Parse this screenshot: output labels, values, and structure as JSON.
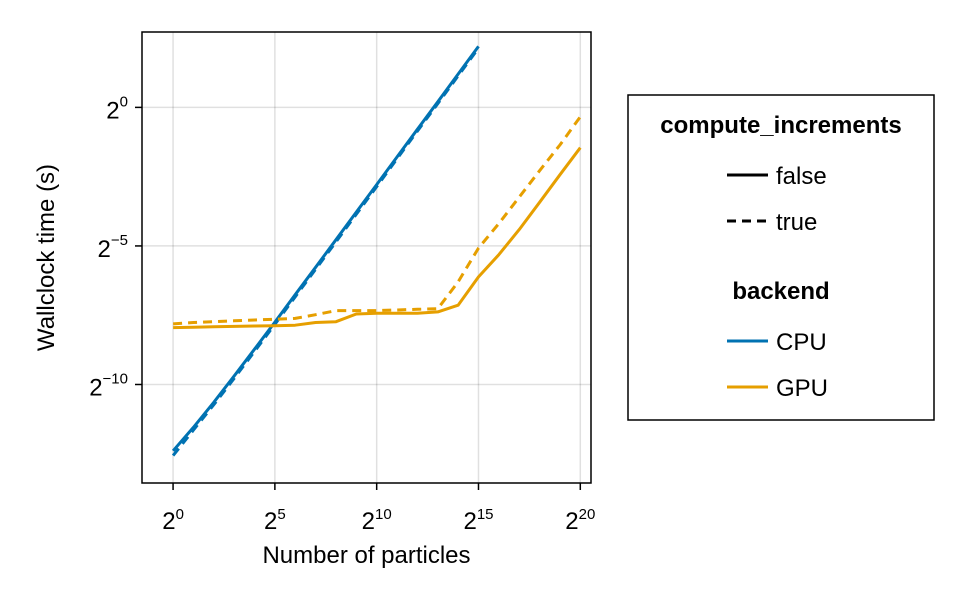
{
  "chart_data": {
    "type": "line",
    "xlabel": "Number of particles",
    "ylabel": "Wallclock time (s)",
    "x_scale": "log2",
    "y_scale": "log2",
    "x_ticks": [
      {
        "base": "2",
        "exp": "0",
        "value": 1
      },
      {
        "base": "2",
        "exp": "5",
        "value": 32
      },
      {
        "base": "2",
        "exp": "10",
        "value": 1024
      },
      {
        "base": "2",
        "exp": "15",
        "value": 32768
      },
      {
        "base": "2",
        "exp": "20",
        "value": 1048576
      }
    ],
    "y_ticks": [
      {
        "base": "2",
        "exp": "0",
        "value": 1
      },
      {
        "base": "2",
        "exp": "−5",
        "value": 0.03125
      },
      {
        "base": "2",
        "exp": "−10",
        "value": 0.0009765625
      }
    ],
    "xlim": [
      0.3473,
      1509600
    ],
    "ylim": [
      8.31e-05,
      6.59
    ],
    "grid": true,
    "legend": {
      "placement": "right",
      "groups": [
        {
          "title": "compute_increments",
          "entries": [
            {
              "label": "false",
              "style": "solid",
              "color": "#000000"
            },
            {
              "label": "true",
              "style": "dashed",
              "color": "#000000"
            }
          ]
        },
        {
          "title": "backend",
          "entries": [
            {
              "label": "CPU",
              "style": "solid",
              "color": "#0072b2"
            },
            {
              "label": "GPU",
              "style": "solid",
              "color": "#e69f00"
            }
          ]
        }
      ]
    },
    "series": [
      {
        "backend": "CPU",
        "compute_increments": "false",
        "color": "#0072b2",
        "dash": false,
        "x": [
          1,
          2,
          4,
          8,
          16,
          32,
          64,
          128,
          256,
          512,
          1024,
          2048,
          4096,
          8192,
          16384,
          32768
        ],
        "y": [
          0.000186,
          0.000334,
          0.000625,
          0.00121,
          0.00236,
          0.00465,
          0.00922,
          0.0183,
          0.0365,
          0.0728,
          0.145,
          0.289,
          0.578,
          1.15,
          2.3,
          4.6
        ]
      },
      {
        "backend": "CPU",
        "compute_increments": "true",
        "color": "#0072b2",
        "dash": true,
        "x": [
          1,
          2,
          4,
          8,
          16,
          32,
          64,
          128,
          256,
          512,
          1024,
          2048,
          4096,
          8192,
          16384,
          32768
        ],
        "y": [
          0.000165,
          0.000312,
          0.000589,
          0.00114,
          0.00223,
          0.0044,
          0.00875,
          0.0174,
          0.0347,
          0.0692,
          0.138,
          0.276,
          0.552,
          1.1,
          2.2,
          4.4
        ]
      },
      {
        "backend": "GPU",
        "compute_increments": "false",
        "color": "#e69f00",
        "dash": false,
        "x": [
          1,
          2,
          4,
          8,
          16,
          32,
          64,
          128,
          256,
          512,
          1024,
          2048,
          4096,
          8192,
          16384,
          32768,
          65536,
          131072,
          262144,
          524288,
          1048576
        ],
        "y": [
          0.00405,
          0.00408,
          0.00413,
          0.00418,
          0.00422,
          0.00425,
          0.0043,
          0.0046,
          0.0047,
          0.0057,
          0.0058,
          0.0058,
          0.0058,
          0.006,
          0.0071,
          0.0144,
          0.0251,
          0.047,
          0.093,
          0.185,
          0.365
        ]
      },
      {
        "backend": "GPU",
        "compute_increments": "true",
        "color": "#e69f00",
        "dash": true,
        "x": [
          1,
          2,
          4,
          8,
          16,
          32,
          64,
          128,
          256,
          512,
          1024,
          2048,
          4096,
          8192,
          16384,
          32768,
          65536,
          131072,
          262144,
          524288,
          1048576
        ],
        "y": [
          0.00445,
          0.0046,
          0.0047,
          0.0048,
          0.0049,
          0.005,
          0.0051,
          0.0056,
          0.0062,
          0.0062,
          0.0062,
          0.0063,
          0.0064,
          0.0065,
          0.0127,
          0.0296,
          0.0546,
          0.106,
          0.205,
          0.39,
          0.79
        ]
      }
    ]
  }
}
